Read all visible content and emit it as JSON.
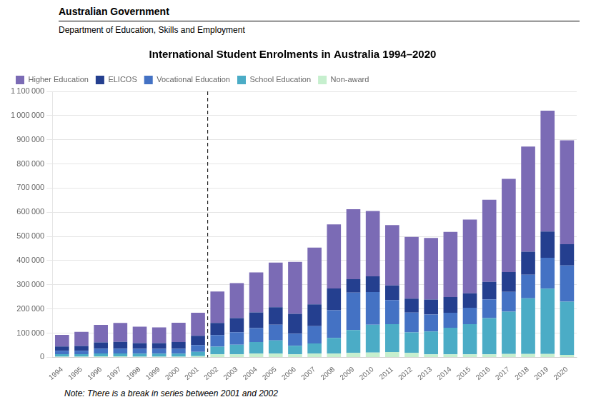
{
  "chart_data": {
    "type": "bar",
    "stacked": true,
    "title": "International Student Enrolments in Australia 1994–2020",
    "header": [
      "Australian Government",
      "Department of Education, Skills and Employment"
    ],
    "note": "Note: There is a break in series between 2001 and 2002",
    "categories": [
      "1994",
      "1995",
      "1996",
      "1997",
      "1998",
      "1999",
      "2000",
      "2001",
      "2002",
      "2003",
      "2004",
      "2005",
      "2006",
      "2007",
      "2008",
      "2009",
      "2010",
      "2011",
      "2012",
      "2013",
      "2014",
      "2015",
      "2016",
      "2017",
      "2018",
      "2019",
      "2020"
    ],
    "break_after": "2001",
    "series": [
      {
        "name": "Higher Education",
        "color": "#7B6BB5",
        "values": [
          48000,
          58000,
          72000,
          78000,
          68000,
          65000,
          80000,
          95000,
          130000,
          145000,
          165000,
          185000,
          215000,
          235000,
          265000,
          290000,
          270000,
          250000,
          255000,
          255000,
          270000,
          305000,
          340000,
          385000,
          435000,
          500000,
          430000
        ]
      },
      {
        "name": "ELICOS",
        "color": "#243F8F",
        "values": [
          18000,
          20000,
          26000,
          28000,
          24000,
          24000,
          28000,
          38000,
          50000,
          58000,
          65000,
          72000,
          82000,
          90000,
          90000,
          55000,
          65000,
          60000,
          58000,
          62000,
          65000,
          60000,
          72000,
          82000,
          95000,
          108000,
          88000
        ]
      },
      {
        "name": "Vocational Education",
        "color": "#4472C4",
        "values": [
          14000,
          14000,
          20000,
          20000,
          20000,
          20000,
          20000,
          28000,
          48000,
          52000,
          58000,
          65000,
          50000,
          72000,
          115000,
          155000,
          135000,
          100000,
          82000,
          70000,
          62000,
          68000,
          78000,
          82000,
          98000,
          128000,
          150000
        ]
      },
      {
        "name": "School Education",
        "color": "#4BACC6",
        "values": [
          10000,
          10000,
          12000,
          12000,
          12000,
          12000,
          12000,
          18000,
          32000,
          40000,
          48000,
          55000,
          36000,
          42000,
          65000,
          95000,
          115000,
          115000,
          85000,
          95000,
          110000,
          125000,
          150000,
          175000,
          230000,
          270000,
          220000
        ]
      },
      {
        "name": "Non-award",
        "color": "#C6EFCE",
        "values": [
          3000,
          3000,
          4000,
          4000,
          3000,
          3000,
          3000,
          5000,
          12000,
          12000,
          15000,
          15000,
          12000,
          15000,
          15000,
          18000,
          20000,
          22000,
          18000,
          12000,
          12000,
          12000,
          12000,
          14000,
          14000,
          14000,
          10000
        ]
      }
    ],
    "ylim": [
      0,
      1100000
    ],
    "yticks": [
      0,
      {
        "value": 100000,
        "label": "100 000"
      },
      {
        "value": 200000,
        "label": "200 000"
      },
      {
        "value": 300000,
        "label": "300 000"
      },
      {
        "value": 400000,
        "label": "400 000"
      },
      {
        "value": 500000,
        "label": "500 000"
      },
      {
        "value": 600000,
        "label": "600 000"
      },
      {
        "value": 700000,
        "label": "700 000"
      },
      {
        "value": 800000,
        "label": "800 000"
      },
      {
        "value": 900000,
        "label": "900 000"
      },
      {
        "value": 1000000,
        "label": "1 000 000"
      },
      {
        "value": 1100000,
        "label": "1 100 000"
      }
    ],
    "grid": true,
    "legend": "upper left"
  }
}
